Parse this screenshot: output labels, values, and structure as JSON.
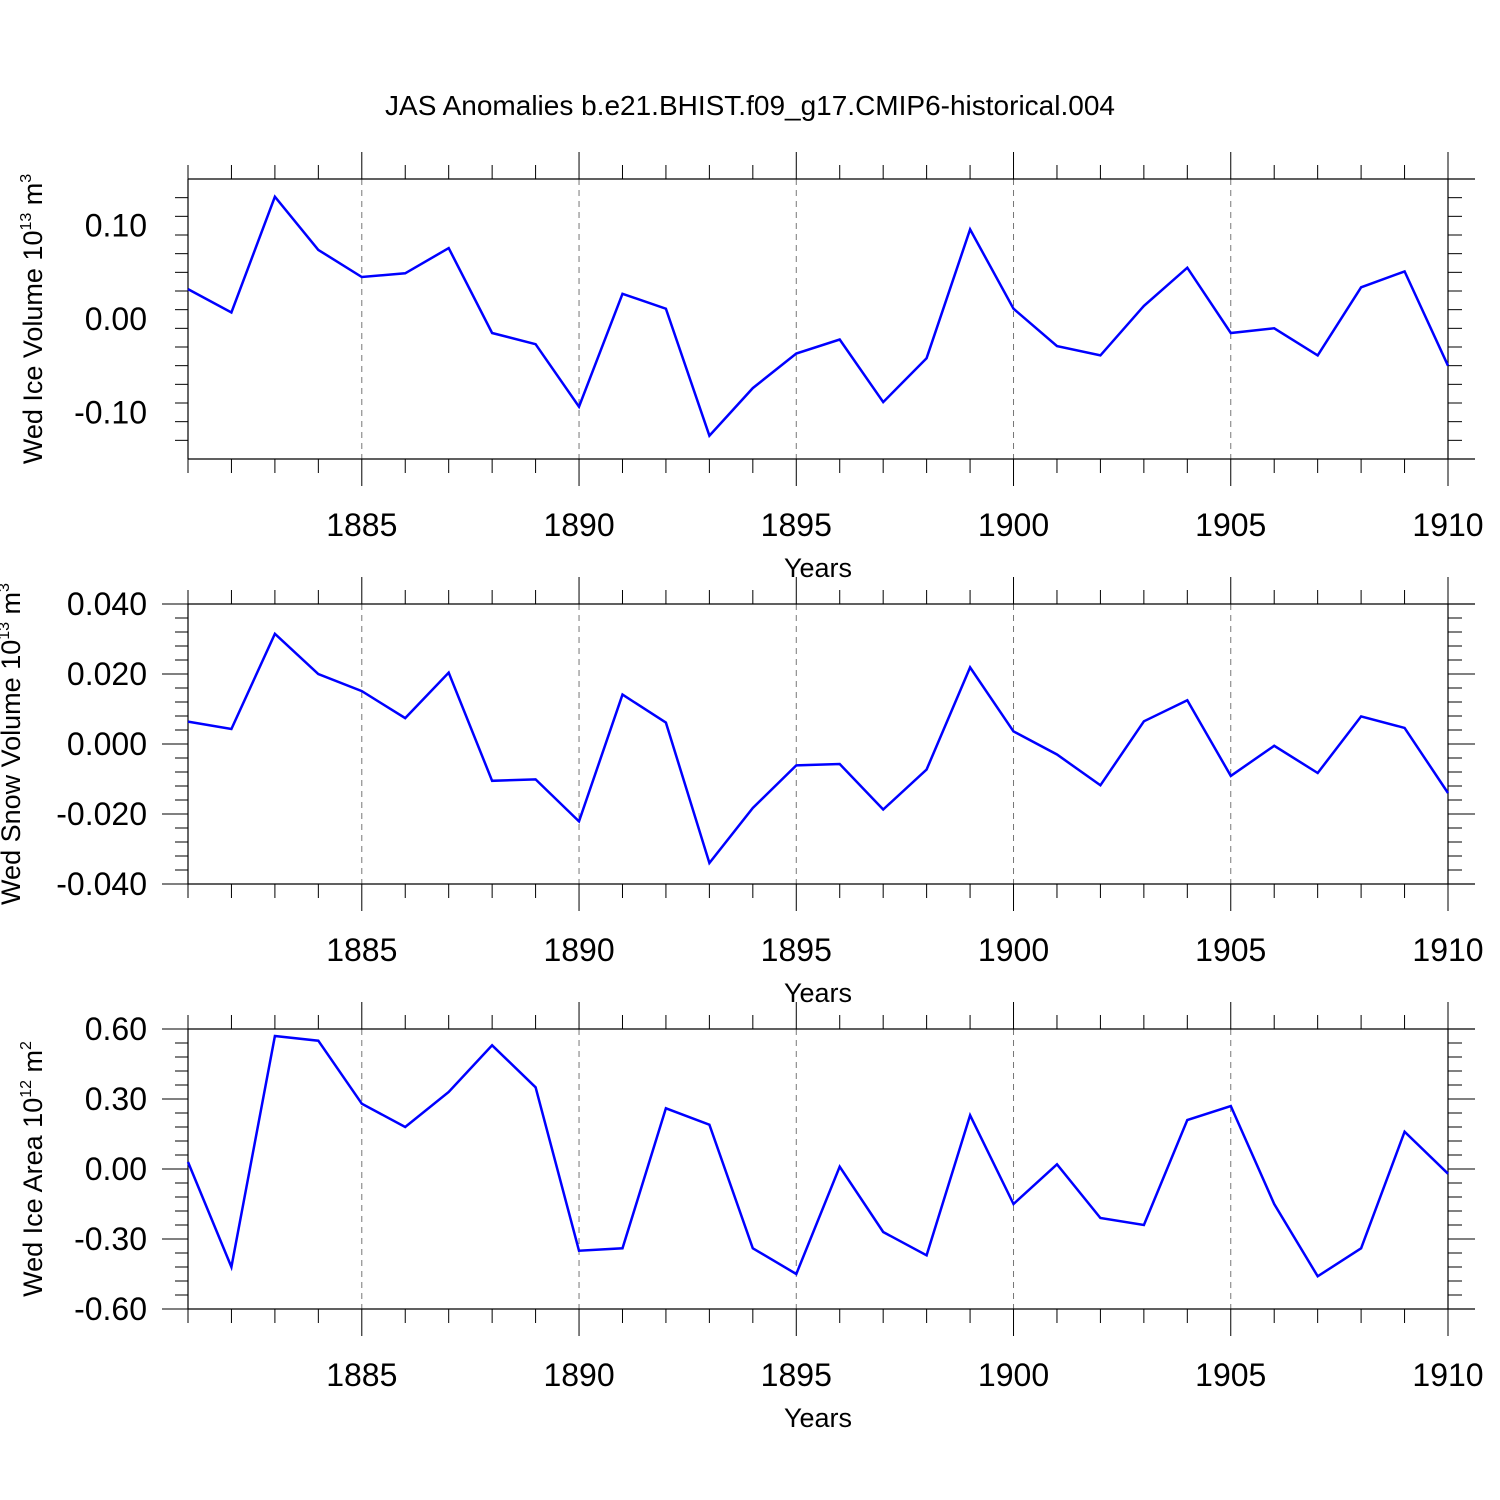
{
  "title": "JAS Anomalies b.e21.BHIST.f09_g17.CMIP6-historical.004",
  "line_color": "#0000ff",
  "chart_data": [
    {
      "type": "line",
      "xlabel": "Years",
      "ylabel_main": "Wed Ice Volume 10",
      "ylabel_exp": "13",
      "ylabel_unit": "m",
      "ylabel_unit_exp": "3",
      "xlim": [
        1881,
        1910
      ],
      "ylim": [
        -0.15,
        0.15
      ],
      "xticks": [
        1885,
        1890,
        1895,
        1900,
        1905,
        1910
      ],
      "xtick_labels": [
        "1885",
        "1890",
        "1895",
        "1900",
        "1905",
        "1910"
      ],
      "yticks": [
        0.1,
        0.0,
        -0.1
      ],
      "ytick_labels": [
        "0.10",
        "0.00",
        "-0.10"
      ],
      "grid": "vertical dashed at major x ticks",
      "x": [
        1881,
        1882,
        1883,
        1884,
        1885,
        1886,
        1887,
        1888,
        1889,
        1890,
        1891,
        1892,
        1893,
        1894,
        1895,
        1896,
        1897,
        1898,
        1899,
        1900,
        1901,
        1902,
        1903,
        1904,
        1905,
        1906,
        1907,
        1908,
        1909,
        1910
      ],
      "values": [
        0.032,
        0.007,
        0.131,
        0.074,
        0.045,
        0.049,
        0.076,
        -0.015,
        -0.027,
        -0.094,
        0.027,
        0.011,
        -0.125,
        -0.074,
        -0.037,
        -0.022,
        -0.089,
        -0.042,
        0.096,
        0.011,
        -0.029,
        -0.039,
        0.014,
        0.055,
        -0.015,
        -0.01,
        -0.039,
        0.034,
        0.051,
        -0.05
      ]
    },
    {
      "type": "line",
      "xlabel": "Years",
      "ylabel_main": "Wed Snow Volume 10",
      "ylabel_exp": "13",
      "ylabel_unit": "m",
      "ylabel_unit_exp": "3",
      "xlim": [
        1881,
        1910
      ],
      "ylim": [
        -0.04,
        0.04
      ],
      "xticks": [
        1885,
        1890,
        1895,
        1900,
        1905,
        1910
      ],
      "xtick_labels": [
        "1885",
        "1890",
        "1895",
        "1900",
        "1905",
        "1910"
      ],
      "yticks": [
        0.04,
        0.02,
        0.0,
        -0.02,
        -0.04
      ],
      "ytick_labels": [
        "0.040",
        "0.020",
        "0.000",
        "-0.020",
        "-0.040"
      ],
      "grid": "vertical dashed at major x ticks",
      "x": [
        1881,
        1882,
        1883,
        1884,
        1885,
        1886,
        1887,
        1888,
        1889,
        1890,
        1891,
        1892,
        1893,
        1894,
        1895,
        1896,
        1897,
        1898,
        1899,
        1900,
        1901,
        1902,
        1903,
        1904,
        1905,
        1906,
        1907,
        1908,
        1909,
        1910
      ],
      "values": [
        0.0064,
        0.0043,
        0.0315,
        0.02,
        0.0151,
        0.0074,
        0.0204,
        -0.0105,
        -0.0101,
        -0.0221,
        0.0141,
        0.0061,
        -0.034,
        -0.0183,
        -0.0061,
        -0.0057,
        -0.0187,
        -0.0073,
        0.0219,
        0.0036,
        -0.003,
        -0.0118,
        0.0065,
        0.0125,
        -0.0091,
        -0.0005,
        -0.0083,
        0.0079,
        0.0046,
        -0.014
      ]
    },
    {
      "type": "line",
      "xlabel": "Years",
      "ylabel_main": "Wed Ice Area 10",
      "ylabel_exp": "12",
      "ylabel_unit": "m",
      "ylabel_unit_exp": "2",
      "xlim": [
        1881,
        1910
      ],
      "ylim": [
        -0.6,
        0.6
      ],
      "xticks": [
        1885,
        1890,
        1895,
        1900,
        1905,
        1910
      ],
      "xtick_labels": [
        "1885",
        "1890",
        "1895",
        "1900",
        "1905",
        "1910"
      ],
      "yticks": [
        0.6,
        0.3,
        0.0,
        -0.3,
        -0.6
      ],
      "ytick_labels": [
        "0.60",
        "0.30",
        "0.00",
        "-0.30",
        "-0.60"
      ],
      "grid": "vertical dashed at major x ticks",
      "x": [
        1881,
        1882,
        1883,
        1884,
        1885,
        1886,
        1887,
        1888,
        1889,
        1890,
        1891,
        1892,
        1893,
        1894,
        1895,
        1896,
        1897,
        1898,
        1899,
        1900,
        1901,
        1902,
        1903,
        1904,
        1905,
        1906,
        1907,
        1908,
        1909,
        1910
      ],
      "values": [
        0.03,
        -0.42,
        0.57,
        0.55,
        0.28,
        0.18,
        0.33,
        0.53,
        0.35,
        -0.35,
        -0.34,
        0.26,
        0.19,
        -0.34,
        -0.45,
        0.01,
        -0.27,
        -0.37,
        0.23,
        -0.15,
        0.02,
        -0.21,
        -0.24,
        0.21,
        0.27,
        -0.15,
        -0.46,
        -0.34,
        0.16,
        -0.02
      ]
    }
  ]
}
